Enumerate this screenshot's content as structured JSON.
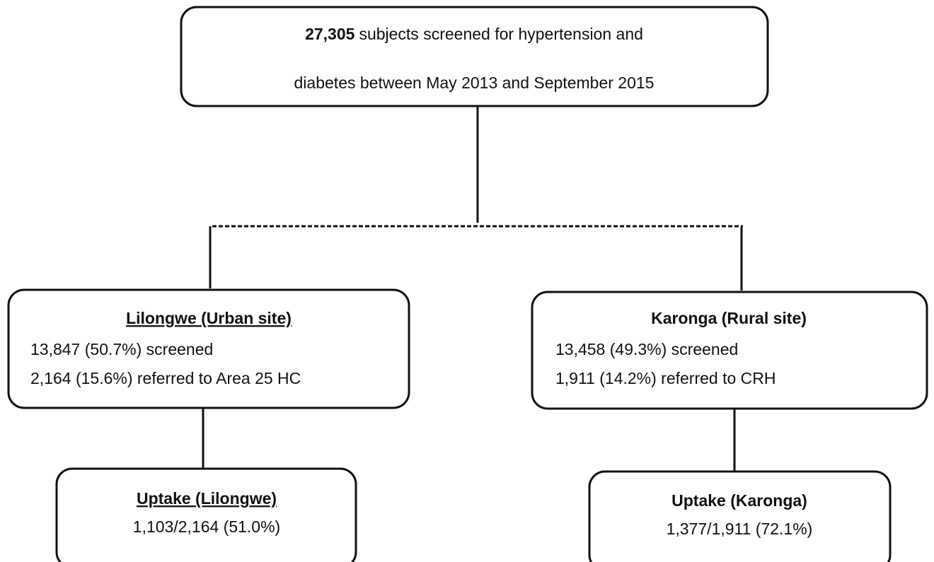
{
  "top": {
    "count": "27,305",
    "line1": "subjects screened for hypertension and",
    "line2": "diabetes between May 2013 and September 2015"
  },
  "sites": [
    {
      "title": "Lilongwe (Urban site)",
      "lines": [
        "13,847 (50.7%) screened",
        "2,164 (15.6%) referred to Area 25 HC"
      ]
    },
    {
      "title": "Karonga (Rural site)",
      "lines": [
        "13,458 (49.3%) screened",
        "1,911 (14.2%) referred to CRH"
      ]
    }
  ],
  "uptake": [
    {
      "title": "Uptake (Lilongwe)",
      "value": "1,103/2,164 (51.0%)"
    },
    {
      "title": "Uptake (Karonga)",
      "value": "1,377/1,911 (72.1%)"
    }
  ]
}
